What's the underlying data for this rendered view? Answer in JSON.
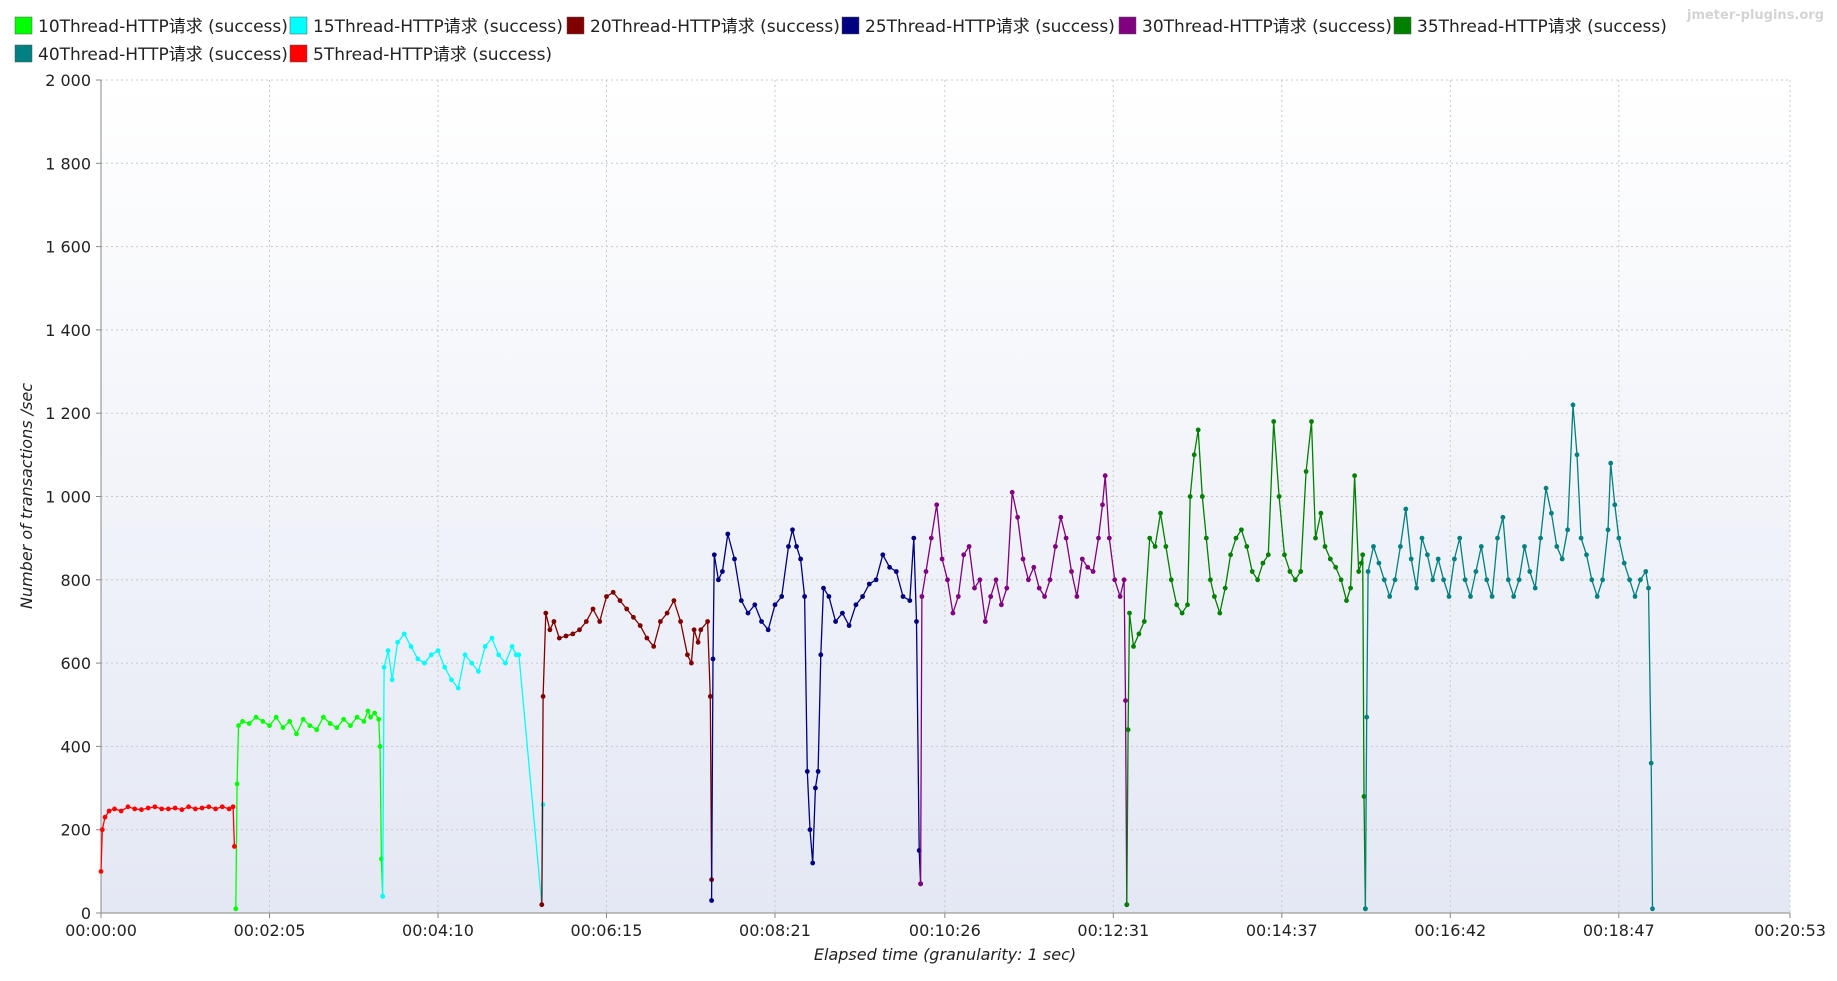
{
  "credit": "jmeter-plugins.org",
  "chart_data": {
    "type": "line",
    "xlabel": "Elapsed time (granularity: 1 sec)",
    "ylabel": "Number of transactions /sec",
    "ylim": [
      0,
      2000
    ],
    "xlim_seconds": [
      0,
      1253
    ],
    "y_ticks": [
      0,
      200,
      400,
      600,
      800,
      1000,
      1200,
      1400,
      1600,
      1800,
      2000
    ],
    "y_tick_labels": [
      "0",
      "200",
      "400",
      "600",
      "800",
      "1 000",
      "1 200",
      "1 400",
      "1 600",
      "1 800",
      "2 000"
    ],
    "x_ticks": [
      0,
      125,
      250,
      375,
      500,
      626,
      751,
      876,
      1001,
      1126,
      1253
    ],
    "x_tick_labels": [
      "00:00:00",
      "00:02:05",
      "00:04:10",
      "00:06:15",
      "00:08:21",
      "00:10:26",
      "00:12:31",
      "00:14:37",
      "00:16:42",
      "00:18:47",
      "00:20:53"
    ],
    "grid": true,
    "legend_position": "top",
    "series": [
      {
        "name": "10Thread-HTTP请求 (success)",
        "color": "#00ff00",
        "points": [
          [
            100,
            10
          ],
          [
            101,
            310
          ],
          [
            102,
            450
          ],
          [
            105,
            460
          ],
          [
            110,
            455
          ],
          [
            115,
            470
          ],
          [
            120,
            460
          ],
          [
            125,
            450
          ],
          [
            130,
            470
          ],
          [
            135,
            445
          ],
          [
            140,
            460
          ],
          [
            145,
            430
          ],
          [
            150,
            465
          ],
          [
            155,
            450
          ],
          [
            160,
            440
          ],
          [
            165,
            470
          ],
          [
            170,
            455
          ],
          [
            175,
            445
          ],
          [
            180,
            465
          ],
          [
            185,
            450
          ],
          [
            190,
            470
          ],
          [
            195,
            460
          ],
          [
            198,
            485
          ],
          [
            200,
            470
          ],
          [
            203,
            480
          ],
          [
            206,
            465
          ],
          [
            207,
            400
          ],
          [
            208,
            130
          ],
          [
            209,
            40
          ]
        ]
      },
      {
        "name": "15Thread-HTTP请求 (success)",
        "color": "#00ffff",
        "points": [
          [
            209,
            40
          ],
          [
            210,
            590
          ],
          [
            213,
            630
          ],
          [
            216,
            560
          ],
          [
            220,
            650
          ],
          [
            225,
            670
          ],
          [
            230,
            640
          ],
          [
            235,
            610
          ],
          [
            240,
            600
          ],
          [
            245,
            620
          ],
          [
            250,
            630
          ],
          [
            255,
            590
          ],
          [
            260,
            560
          ],
          [
            265,
            540
          ],
          [
            270,
            620
          ],
          [
            275,
            600
          ],
          [
            280,
            580
          ],
          [
            285,
            640
          ],
          [
            290,
            660
          ],
          [
            295,
            620
          ],
          [
            300,
            600
          ],
          [
            305,
            640
          ],
          [
            308,
            620
          ],
          [
            310,
            620
          ],
          [
            327,
            20
          ],
          [
            328,
            260
          ]
        ]
      },
      {
        "name": "20Thread-HTTP请求 (success)",
        "color": "#800000",
        "points": [
          [
            327,
            20
          ],
          [
            328,
            520
          ],
          [
            330,
            720
          ],
          [
            333,
            680
          ],
          [
            336,
            700
          ],
          [
            340,
            660
          ],
          [
            345,
            665
          ],
          [
            350,
            670
          ],
          [
            355,
            680
          ],
          [
            360,
            700
          ],
          [
            365,
            730
          ],
          [
            370,
            700
          ],
          [
            375,
            760
          ],
          [
            380,
            770
          ],
          [
            385,
            750
          ],
          [
            390,
            730
          ],
          [
            395,
            710
          ],
          [
            400,
            690
          ],
          [
            405,
            660
          ],
          [
            410,
            640
          ],
          [
            415,
            700
          ],
          [
            420,
            720
          ],
          [
            425,
            750
          ],
          [
            430,
            700
          ],
          [
            435,
            620
          ],
          [
            438,
            600
          ],
          [
            440,
            680
          ],
          [
            443,
            650
          ],
          [
            445,
            680
          ],
          [
            450,
            700
          ],
          [
            452,
            520
          ],
          [
            453,
            80
          ]
        ]
      },
      {
        "name": "25Thread-HTTP请求 (success)",
        "color": "#000080",
        "points": [
          [
            453,
            30
          ],
          [
            454,
            610
          ],
          [
            455,
            860
          ],
          [
            458,
            800
          ],
          [
            461,
            820
          ],
          [
            465,
            910
          ],
          [
            470,
            850
          ],
          [
            475,
            750
          ],
          [
            480,
            720
          ],
          [
            485,
            740
          ],
          [
            490,
            700
          ],
          [
            495,
            680
          ],
          [
            500,
            740
          ],
          [
            505,
            760
          ],
          [
            510,
            880
          ],
          [
            513,
            920
          ],
          [
            516,
            880
          ],
          [
            519,
            850
          ],
          [
            522,
            760
          ],
          [
            524,
            340
          ],
          [
            526,
            200
          ],
          [
            528,
            120
          ],
          [
            530,
            300
          ],
          [
            532,
            340
          ],
          [
            534,
            620
          ],
          [
            536,
            780
          ],
          [
            540,
            760
          ],
          [
            545,
            700
          ],
          [
            550,
            720
          ],
          [
            555,
            690
          ],
          [
            560,
            740
          ],
          [
            565,
            760
          ],
          [
            570,
            790
          ],
          [
            575,
            800
          ],
          [
            580,
            860
          ],
          [
            585,
            830
          ],
          [
            590,
            820
          ],
          [
            595,
            760
          ],
          [
            600,
            750
          ],
          [
            603,
            900
          ],
          [
            605,
            700
          ],
          [
            607,
            150
          ],
          [
            608,
            70
          ]
        ]
      },
      {
        "name": "30Thread-HTTP请求 (success)",
        "color": "#800080",
        "points": [
          [
            608,
            70
          ],
          [
            609,
            760
          ],
          [
            612,
            820
          ],
          [
            616,
            900
          ],
          [
            620,
            980
          ],
          [
            624,
            850
          ],
          [
            628,
            800
          ],
          [
            632,
            720
          ],
          [
            636,
            760
          ],
          [
            640,
            860
          ],
          [
            644,
            880
          ],
          [
            648,
            780
          ],
          [
            652,
            800
          ],
          [
            656,
            700
          ],
          [
            660,
            760
          ],
          [
            664,
            800
          ],
          [
            668,
            740
          ],
          [
            672,
            780
          ],
          [
            676,
            1010
          ],
          [
            680,
            950
          ],
          [
            684,
            850
          ],
          [
            688,
            800
          ],
          [
            692,
            830
          ],
          [
            696,
            780
          ],
          [
            700,
            760
          ],
          [
            704,
            800
          ],
          [
            708,
            880
          ],
          [
            712,
            950
          ],
          [
            716,
            900
          ],
          [
            720,
            820
          ],
          [
            724,
            760
          ],
          [
            728,
            850
          ],
          [
            732,
            830
          ],
          [
            736,
            820
          ],
          [
            740,
            900
          ],
          [
            743,
            980
          ],
          [
            745,
            1050
          ],
          [
            748,
            900
          ],
          [
            752,
            800
          ],
          [
            756,
            760
          ],
          [
            759,
            800
          ],
          [
            760,
            510
          ],
          [
            761,
            20
          ]
        ]
      },
      {
        "name": "35Thread-HTTP请求 (success)",
        "color": "#008000",
        "points": [
          [
            761,
            20
          ],
          [
            762,
            440
          ],
          [
            763,
            720
          ],
          [
            766,
            640
          ],
          [
            770,
            670
          ],
          [
            774,
            700
          ],
          [
            778,
            900
          ],
          [
            782,
            880
          ],
          [
            786,
            960
          ],
          [
            790,
            880
          ],
          [
            794,
            800
          ],
          [
            798,
            740
          ],
          [
            802,
            720
          ],
          [
            806,
            740
          ],
          [
            808,
            1000
          ],
          [
            811,
            1100
          ],
          [
            814,
            1160
          ],
          [
            817,
            1000
          ],
          [
            820,
            900
          ],
          [
            823,
            800
          ],
          [
            826,
            760
          ],
          [
            830,
            720
          ],
          [
            834,
            780
          ],
          [
            838,
            860
          ],
          [
            842,
            900
          ],
          [
            846,
            920
          ],
          [
            850,
            880
          ],
          [
            854,
            820
          ],
          [
            858,
            800
          ],
          [
            862,
            840
          ],
          [
            866,
            860
          ],
          [
            870,
            1180
          ],
          [
            874,
            1000
          ],
          [
            878,
            860
          ],
          [
            882,
            820
          ],
          [
            886,
            800
          ],
          [
            890,
            820
          ],
          [
            894,
            1060
          ],
          [
            898,
            1180
          ],
          [
            901,
            900
          ],
          [
            905,
            960
          ],
          [
            908,
            880
          ],
          [
            912,
            850
          ],
          [
            916,
            830
          ],
          [
            920,
            800
          ],
          [
            924,
            750
          ],
          [
            927,
            780
          ],
          [
            930,
            1050
          ],
          [
            933,
            820
          ],
          [
            935,
            840
          ],
          [
            936,
            860
          ],
          [
            937,
            280
          ],
          [
            938,
            10
          ]
        ]
      },
      {
        "name": "40Thread-HTTP请求 (success)",
        "color": "#008080",
        "points": [
          [
            938,
            10
          ],
          [
            939,
            470
          ],
          [
            940,
            820
          ],
          [
            944,
            880
          ],
          [
            948,
            840
          ],
          [
            952,
            800
          ],
          [
            956,
            760
          ],
          [
            960,
            800
          ],
          [
            964,
            880
          ],
          [
            968,
            970
          ],
          [
            972,
            850
          ],
          [
            976,
            780
          ],
          [
            980,
            900
          ],
          [
            984,
            860
          ],
          [
            988,
            800
          ],
          [
            992,
            850
          ],
          [
            996,
            800
          ],
          [
            1000,
            760
          ],
          [
            1004,
            850
          ],
          [
            1008,
            900
          ],
          [
            1012,
            800
          ],
          [
            1016,
            760
          ],
          [
            1020,
            820
          ],
          [
            1024,
            880
          ],
          [
            1028,
            800
          ],
          [
            1032,
            760
          ],
          [
            1036,
            900
          ],
          [
            1040,
            950
          ],
          [
            1044,
            800
          ],
          [
            1048,
            760
          ],
          [
            1052,
            800
          ],
          [
            1056,
            880
          ],
          [
            1060,
            820
          ],
          [
            1064,
            780
          ],
          [
            1068,
            900
          ],
          [
            1072,
            1020
          ],
          [
            1076,
            960
          ],
          [
            1080,
            880
          ],
          [
            1084,
            850
          ],
          [
            1088,
            920
          ],
          [
            1092,
            1220
          ],
          [
            1095,
            1100
          ],
          [
            1098,
            900
          ],
          [
            1102,
            860
          ],
          [
            1106,
            800
          ],
          [
            1110,
            760
          ],
          [
            1114,
            800
          ],
          [
            1118,
            920
          ],
          [
            1120,
            1080
          ],
          [
            1123,
            980
          ],
          [
            1126,
            900
          ],
          [
            1130,
            840
          ],
          [
            1134,
            800
          ],
          [
            1138,
            760
          ],
          [
            1142,
            800
          ],
          [
            1146,
            820
          ],
          [
            1148,
            780
          ],
          [
            1150,
            360
          ],
          [
            1151,
            10
          ]
        ]
      },
      {
        "name": "5Thread-HTTP请求 (success)",
        "color": "#ff0000",
        "points": [
          [
            0,
            100
          ],
          [
            1,
            200
          ],
          [
            3,
            230
          ],
          [
            6,
            245
          ],
          [
            10,
            250
          ],
          [
            15,
            245
          ],
          [
            20,
            255
          ],
          [
            25,
            250
          ],
          [
            30,
            248
          ],
          [
            35,
            252
          ],
          [
            40,
            255
          ],
          [
            45,
            250
          ],
          [
            50,
            250
          ],
          [
            55,
            252
          ],
          [
            60,
            248
          ],
          [
            65,
            255
          ],
          [
            70,
            250
          ],
          [
            75,
            252
          ],
          [
            80,
            255
          ],
          [
            85,
            250
          ],
          [
            90,
            255
          ],
          [
            95,
            250
          ],
          [
            98,
            255
          ],
          [
            99,
            160
          ]
        ]
      }
    ]
  }
}
